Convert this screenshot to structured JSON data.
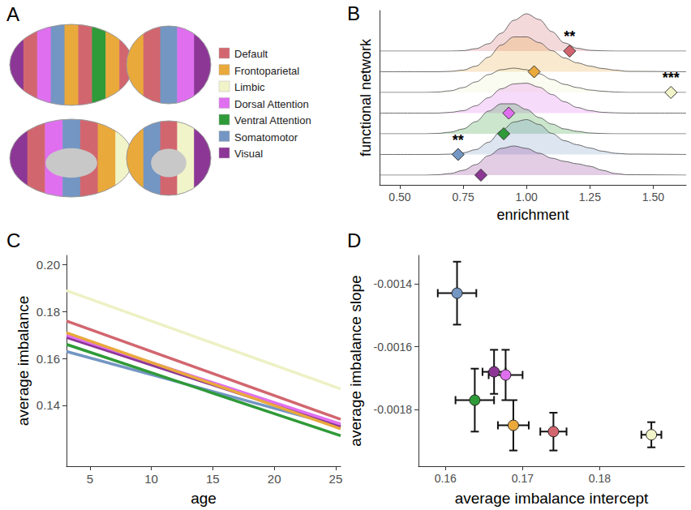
{
  "chart_data": [
    {
      "panel": "A",
      "type": "legend",
      "series": [
        {
          "name": "Default",
          "color": "#d2666f"
        },
        {
          "name": "Frontoparietal",
          "color": "#e9a93b"
        },
        {
          "name": "Limbic",
          "color": "#f1f4c8"
        },
        {
          "name": "Dorsal Attention",
          "color": "#e06ff0"
        },
        {
          "name": "Ventral Attention",
          "color": "#2f9a38"
        },
        {
          "name": "Somatomotor",
          "color": "#7396c3"
        },
        {
          "name": "Visual",
          "color": "#8c3796"
        }
      ]
    },
    {
      "panel": "B",
      "type": "ridgeline",
      "x_label": "enrichment",
      "y_label": "functional network",
      "x": [
        0.42,
        0.6,
        0.65,
        0.7,
        0.75,
        0.8,
        0.85,
        0.9,
        0.95,
        1.0,
        1.05,
        1.1,
        1.15,
        1.2,
        1.25,
        1.3,
        1.35,
        1.4,
        1.63
      ],
      "xlim": [
        0.42,
        1.63
      ],
      "xticks": [
        {
          "value": 0.5,
          "label": "0.50"
        },
        {
          "value": 0.75,
          "label": "0.75"
        },
        {
          "value": 1.0,
          "label": "1.00"
        },
        {
          "value": 1.25,
          "label": "1.25"
        },
        {
          "value": 1.5,
          "label": "1.50"
        }
      ],
      "ylim": [
        0,
        5
      ],
      "tick_labels": "x",
      "grid": false,
      "marker": "diamond",
      "series": [
        {
          "name": "Default",
          "color": "#d2666f",
          "enrichment": 1.17,
          "significance": "**",
          "density": [
            0,
            0,
            0,
            0,
            0.05,
            0.3,
            0.9,
            2.2,
            3.8,
            4.6,
            3.9,
            2.4,
            1.0,
            0.35,
            0.1,
            0.03,
            0,
            0,
            0
          ]
        },
        {
          "name": "Frontoparietal",
          "color": "#e9a93b",
          "enrichment": 1.03,
          "density": [
            0,
            0,
            0,
            0.05,
            0.2,
            0.7,
            1.8,
            3.3,
            4.3,
            4.3,
            3.6,
            2.6,
            1.7,
            1.1,
            0.7,
            0.4,
            0.2,
            0.05,
            0
          ]
        },
        {
          "name": "Limbic",
          "color": "#f1f4c8",
          "enrichment": 1.57,
          "significance": "***",
          "density": [
            0,
            0,
            0.05,
            0.2,
            0.6,
            1.3,
            2.2,
            2.8,
            3.0,
            2.8,
            2.3,
            1.6,
            1.0,
            0.6,
            0.3,
            0.15,
            0.05,
            0,
            0
          ]
        },
        {
          "name": "Dorsal Attention",
          "color": "#e06ff0",
          "enrichment": 0.93,
          "density": [
            0,
            0,
            0,
            0.1,
            0.3,
            0.9,
            1.9,
            3.0,
            3.6,
            3.7,
            3.2,
            2.3,
            1.4,
            0.7,
            0.3,
            0.1,
            0.03,
            0,
            0
          ]
        },
        {
          "name": "Ventral Attention",
          "color": "#2f9a38",
          "enrichment": 0.91,
          "density": [
            0,
            0,
            0.05,
            0.2,
            0.6,
            1.5,
            2.8,
            3.7,
            3.7,
            3.0,
            2.0,
            1.2,
            0.6,
            0.3,
            0.1,
            0.03,
            0,
            0,
            0
          ]
        },
        {
          "name": "Somatomotor",
          "color": "#7396c3",
          "enrichment": 0.73,
          "significance": "**",
          "density": [
            0,
            0,
            0,
            0.05,
            0.2,
            0.6,
            1.5,
            2.9,
            4.0,
            4.3,
            3.7,
            2.6,
            1.7,
            1.2,
            0.8,
            0.4,
            0.15,
            0.05,
            0
          ]
        },
        {
          "name": "Visual",
          "color": "#8c3796",
          "enrichment": 0.82,
          "density": [
            0,
            0,
            0.05,
            0.2,
            0.6,
            1.3,
            2.4,
            3.3,
            3.6,
            3.3,
            2.7,
            2.1,
            1.7,
            1.4,
            1.1,
            0.6,
            0.2,
            0.05,
            0
          ]
        }
      ]
    },
    {
      "panel": "C",
      "type": "line",
      "x_label": "age",
      "y_label": "average imbalance",
      "x": [
        3.1,
        25.4
      ],
      "xlim": [
        3.1,
        25.4
      ],
      "xticks": [
        5,
        10,
        15,
        20,
        25
      ],
      "ylim": [
        0.114,
        0.204
      ],
      "yticks": [
        0.14,
        0.16,
        0.18,
        {
          "value": 0.2,
          "label": "0.20"
        }
      ],
      "grid": false,
      "line_style": "solid",
      "series": [
        {
          "name": "Limbic",
          "color": "#edf1c4",
          "values": [
            0.189,
            0.147
          ]
        },
        {
          "name": "Somatomotor",
          "color": "#7396c3",
          "values": [
            0.163,
            0.131
          ]
        },
        {
          "name": "Visual",
          "color": "#8c3796",
          "values": [
            0.169,
            0.131
          ]
        },
        {
          "name": "Dorsal Attention",
          "color": "#e06ff0",
          "values": [
            0.17,
            0.132
          ]
        },
        {
          "name": "Frontoparietal",
          "color": "#e9a93b",
          "values": [
            0.171,
            0.13
          ]
        },
        {
          "name": "Ventral Attention",
          "color": "#2f9a38",
          "values": [
            0.166,
            0.127
          ]
        },
        {
          "name": "Default",
          "color": "#d2666f",
          "values": [
            0.176,
            0.134
          ]
        }
      ]
    },
    {
      "panel": "D",
      "type": "scatter",
      "x_label": "average imbalance intercept",
      "y_label": "average imbalance slope",
      "xlim": [
        0.1565,
        0.191
      ],
      "xticks": [
        0.16,
        0.17,
        0.18
      ],
      "ylim": [
        -0.00198,
        -0.00131
      ],
      "yticks": [
        -0.0018,
        -0.0016,
        -0.0014
      ],
      "grid": false,
      "marker": "circle",
      "series": [
        {
          "name": "Default",
          "color": "#d2666f",
          "x": [
            0.174
          ],
          "values": [
            -0.00187
          ],
          "x_err": [
            0.0017
          ],
          "y_err": [
            6e-05
          ]
        },
        {
          "name": "Frontoparietal",
          "color": "#e9a93b",
          "x": [
            0.1688
          ],
          "values": [
            -0.00185
          ],
          "x_err": [
            0.002
          ],
          "y_err": [
            8e-05
          ]
        },
        {
          "name": "Limbic",
          "color": "#f1f4c8",
          "x": [
            0.1867
          ],
          "values": [
            -0.00188
          ],
          "x_err": [
            0.0013
          ],
          "y_err": [
            4e-05
          ]
        },
        {
          "name": "Dorsal Attention",
          "color": "#e06ff0",
          "x": [
            0.1678
          ],
          "values": [
            -0.00169
          ],
          "x_err": [
            0.0022
          ],
          "y_err": [
            8e-05
          ]
        },
        {
          "name": "Ventral Attention",
          "color": "#2f9a38",
          "x": [
            0.1638
          ],
          "values": [
            -0.00177
          ],
          "x_err": [
            0.0025
          ],
          "y_err": [
            0.0001
          ]
        },
        {
          "name": "Somatomotor",
          "color": "#7396c3",
          "x": [
            0.1615
          ],
          "values": [
            -0.00143
          ],
          "x_err": [
            0.0025
          ],
          "y_err": [
            0.0001
          ]
        },
        {
          "name": "Visual",
          "color": "#8c3796",
          "x": [
            0.1663
          ],
          "values": [
            -0.00168
          ],
          "x_err": [
            0.0015
          ],
          "y_err": [
            7e-05
          ]
        }
      ]
    }
  ]
}
